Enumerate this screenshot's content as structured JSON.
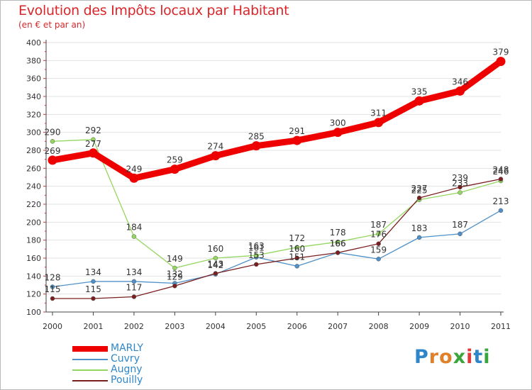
{
  "page": {
    "title": "Evolution des Impôts locaux par Habitant",
    "subtitle": "(en € et par an)"
  },
  "logo": {
    "letters": [
      "P",
      "r",
      "o",
      "x",
      "i",
      "t",
      "i"
    ],
    "colors": [
      "#2e86c8",
      "#e0812a",
      "#e0812a",
      "#3aa53a",
      "#e03a3a",
      "#2e86c8",
      "#3aa53a"
    ]
  },
  "chart_data": {
    "type": "line",
    "title": "Evolution des Impôts locaux par Habitant",
    "subtitle": "(en € et par an)",
    "xlabel": "",
    "ylabel": "",
    "x": [
      "2000",
      "2001",
      "2002",
      "2003",
      "2004",
      "2005",
      "2006",
      "2007",
      "2008",
      "2009",
      "2010",
      "2011"
    ],
    "ylim": [
      100,
      400
    ],
    "yticks": [
      "100",
      "120",
      "140",
      "160",
      "180",
      "200",
      "220",
      "240",
      "260",
      "280",
      "300",
      "320",
      "340",
      "360",
      "380",
      "400"
    ],
    "grid": "horizontal",
    "legend_position": "bottom-left",
    "series": [
      {
        "name": "MARLY",
        "color": "#ee0000",
        "values": [
          269,
          277,
          249,
          259,
          274,
          285,
          291,
          300,
          311,
          335,
          346,
          379
        ],
        "labels": [
          "269",
          "277",
          "249",
          "259",
          "274",
          "285",
          "291",
          "300",
          "311",
          "335",
          "346",
          "379"
        ]
      },
      {
        "name": "Cuvry",
        "color": "#4f90c8",
        "values": [
          128,
          134,
          134,
          132,
          142,
          161,
          151,
          166,
          159,
          183,
          187,
          213
        ],
        "labels": [
          "128",
          "134",
          "134",
          "132",
          "142",
          "161",
          "151",
          "166",
          "159",
          "183",
          "187",
          "213"
        ]
      },
      {
        "name": "Augny",
        "color": "#94d760",
        "values": [
          290,
          292,
          184,
          149,
          160,
          163,
          172,
          178,
          187,
          225,
          233,
          246
        ],
        "labels": [
          "290",
          "292",
          "184",
          "149",
          "160",
          "163",
          "172",
          "178",
          "187",
          "225",
          "233",
          "246"
        ]
      },
      {
        "name": "Pouilly",
        "color": "#7a1f1f",
        "values": [
          115,
          115,
          117,
          129,
          143,
          153,
          160,
          166,
          176,
          227,
          239,
          248
        ],
        "labels": [
          "115",
          "115",
          "117",
          "129",
          "143",
          "153",
          "160",
          "166",
          "176",
          "227",
          "239",
          "248"
        ]
      }
    ]
  }
}
